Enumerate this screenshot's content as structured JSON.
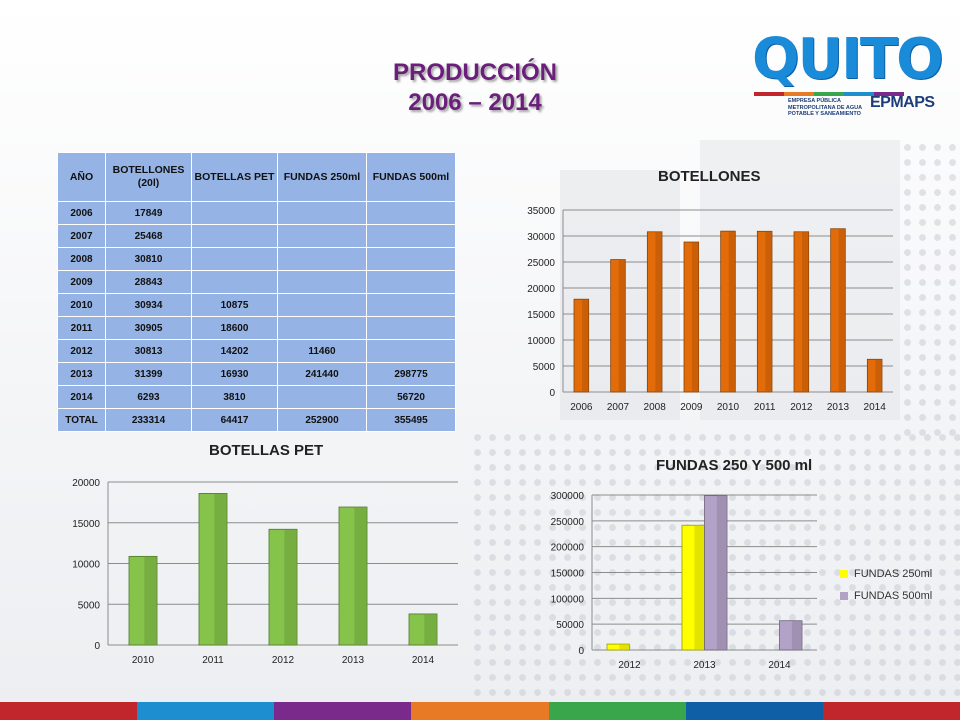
{
  "header": {
    "title_line1": "PRODUCCIÓN",
    "title_line2": "2006 – 2014"
  },
  "logo": {
    "word": "QUITO",
    "subtitle": "EMPRESA PÚBLICA METROPOLITANA DE AGUA POTABLE Y SANEAMIENTO",
    "acronym": "EPMAPS"
  },
  "table": {
    "headers": [
      "AÑO",
      "BOTELLONES (20l)",
      "BOTELLAS PET",
      "FUNDAS 250ml",
      "FUNDAS 500ml"
    ],
    "rows": [
      [
        "2006",
        "17849",
        "",
        "",
        ""
      ],
      [
        "2007",
        "25468",
        "",
        "",
        ""
      ],
      [
        "2008",
        "30810",
        "",
        "",
        ""
      ],
      [
        "2009",
        "28843",
        "",
        "",
        ""
      ],
      [
        "2010",
        "30934",
        "10875",
        "",
        ""
      ],
      [
        "2011",
        "30905",
        "18600",
        "",
        ""
      ],
      [
        "2012",
        "30813",
        "14202",
        "11460",
        ""
      ],
      [
        "2013",
        "31399",
        "16930",
        "241440",
        "298775"
      ],
      [
        "2014",
        "6293",
        "3810",
        "",
        "56720"
      ],
      [
        "TOTAL",
        "233314",
        "64417",
        "252900",
        "355495"
      ]
    ]
  },
  "colors": {
    "title": "#6a1f7a",
    "table_cell": "#95b3e4",
    "orange_bar": "#e36c0a",
    "green_bar": "#86c34a",
    "yellow_bar": "#ffff00",
    "purple_bar": "#b3a2c7",
    "bottom_bar": [
      "#c0262c",
      "#1d8fd1",
      "#7a2a8a",
      "#e97a25",
      "#3aa64b",
      "#0e5fa6",
      "#c0262c"
    ]
  },
  "chart_data": [
    {
      "id": "botellones",
      "type": "bar",
      "title": "BOTELLONES",
      "categories": [
        "2006",
        "2007",
        "2008",
        "2009",
        "2010",
        "2011",
        "2012",
        "2013",
        "2014"
      ],
      "values": [
        17849,
        25468,
        30810,
        28843,
        30934,
        30905,
        30813,
        31399,
        6293
      ],
      "ylim": [
        0,
        35000
      ],
      "yticks": [
        0,
        5000,
        10000,
        15000,
        20000,
        25000,
        30000,
        35000
      ],
      "grid": true,
      "legend": "none"
    },
    {
      "id": "pet",
      "type": "bar",
      "title": "BOTELLAS PET",
      "categories": [
        "2010",
        "2011",
        "2012",
        "2013",
        "2014"
      ],
      "values": [
        10875,
        18600,
        14202,
        16930,
        3810
      ],
      "ylim": [
        0,
        20000
      ],
      "yticks": [
        0,
        5000,
        10000,
        15000,
        20000
      ],
      "grid": true,
      "legend": "none"
    },
    {
      "id": "fundas",
      "type": "bar",
      "title": "FUNDAS 250 Y 500 ml",
      "categories": [
        "2012",
        "2013",
        "2014"
      ],
      "series": [
        {
          "name": "FUNDAS 250ml",
          "values": [
            11460,
            241440,
            null
          ]
        },
        {
          "name": "FUNDAS 500ml",
          "values": [
            null,
            298775,
            56720
          ]
        }
      ],
      "ylim": [
        0,
        300000
      ],
      "yticks": [
        0,
        50000,
        100000,
        150000,
        200000,
        250000,
        300000
      ],
      "grid": true,
      "legend": "right"
    }
  ]
}
